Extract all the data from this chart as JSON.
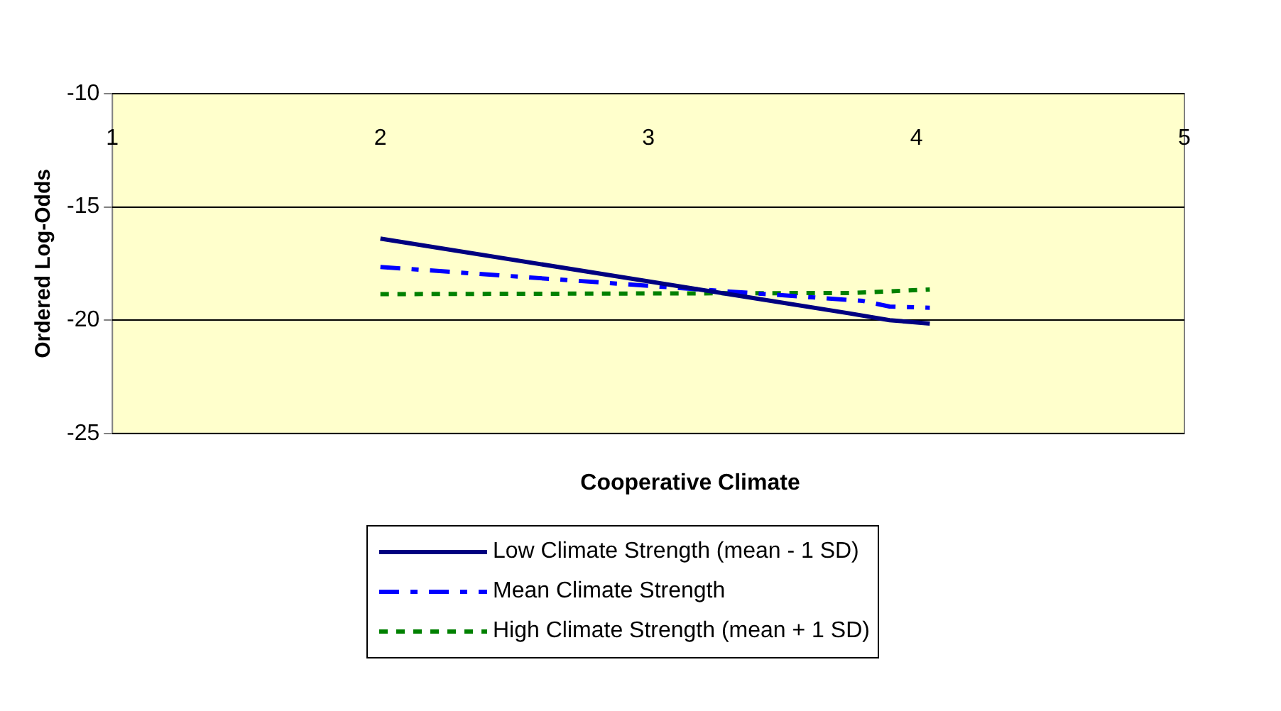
{
  "chart_data": {
    "type": "line",
    "xlabel": "Cooperative Climate",
    "ylabel": "Ordered Log-Odds",
    "xlim": [
      1,
      5
    ],
    "xticks": [
      1,
      2,
      3,
      4,
      5
    ],
    "ylim": [
      -25,
      -10
    ],
    "yticks": [
      -25,
      -20,
      -15,
      -10
    ],
    "grid": "y",
    "legend": "bottom",
    "marker": "none",
    "series": [
      {
        "name": "Low Climate Strength (mean - 1 SD)",
        "color": "#000080",
        "line_style": "solid",
        "x": [
          2,
          3.75,
          3.9,
          4.05
        ],
        "values": [
          -16.4,
          -19.7,
          -20.0,
          -20.15
        ]
      },
      {
        "name": "Mean Climate Strength",
        "color": "#0000ff",
        "line_style": "dashed",
        "x": [
          2,
          3.8,
          3.9,
          4.05
        ],
        "values": [
          -17.65,
          -19.15,
          -19.4,
          -19.45
        ]
      },
      {
        "name": "High Climate Strength (mean + 1 SD)",
        "color": "#008000",
        "line_style": "dotted",
        "x": [
          2,
          3.75,
          4.05
        ],
        "values": [
          -18.85,
          -18.8,
          -18.65
        ]
      }
    ]
  }
}
